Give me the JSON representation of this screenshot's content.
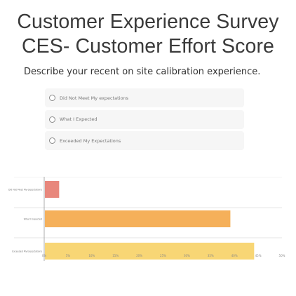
{
  "survey": {
    "title_line1": "Customer Experience Survey",
    "title_line2": "CES- Customer Effort Score",
    "question": "Describe your recent on site calibration experience.",
    "options": [
      {
        "label": "Did Not Meet My expectations",
        "selected": false
      },
      {
        "label": "What I Expected",
        "selected": false
      },
      {
        "label": "Exceeded My Expectations",
        "selected": false
      }
    ]
  },
  "chart_data": {
    "type": "bar",
    "orientation": "horizontal",
    "categories": [
      "Did Not Meet My expectations",
      "What I Expected",
      "Exceeded My Expectations"
    ],
    "values": [
      3,
      39,
      44
    ],
    "colors": [
      "#e8877c",
      "#f5b05a",
      "#f8d675"
    ],
    "x_ticks": [
      "0%",
      "5%",
      "10%",
      "15%",
      "20%",
      "25%",
      "30%",
      "35%",
      "40%",
      "45%",
      "50%"
    ],
    "xlim": [
      0,
      50
    ],
    "grid": true,
    "title": "",
    "xlabel": "",
    "ylabel": ""
  }
}
